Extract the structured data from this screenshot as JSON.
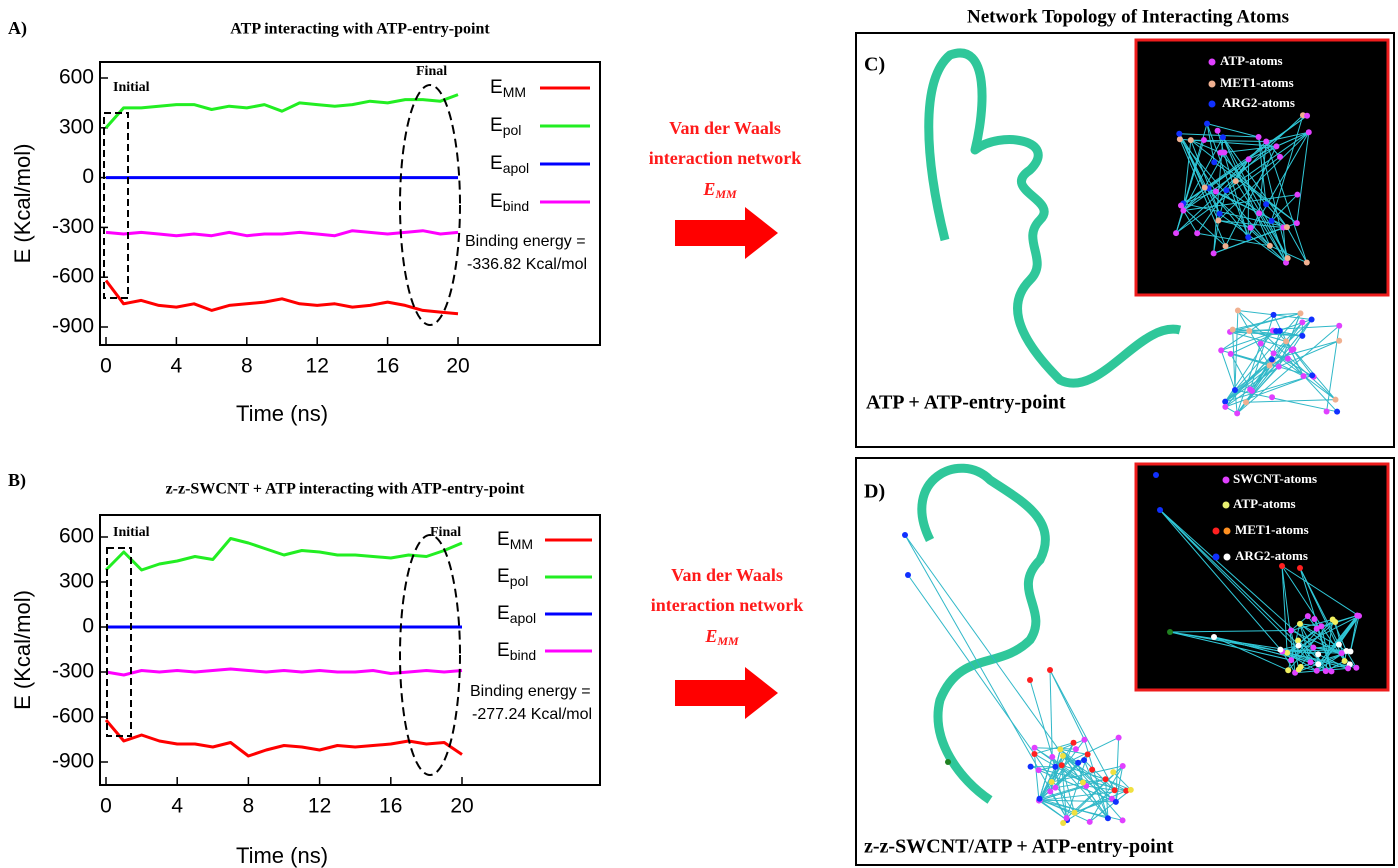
{
  "chart_data": [
    {
      "type": "line",
      "panel": "A)",
      "title": "ATP interacting with ATP-entry-point",
      "xlabel": "Time (ns)",
      "ylabel": "E (Kcal/mol)",
      "x": [
        0,
        1,
        2,
        3,
        4,
        5,
        6,
        7,
        8,
        9,
        10,
        11,
        12,
        13,
        14,
        15,
        16,
        17,
        18,
        19,
        20
      ],
      "xlim": [
        0,
        20
      ],
      "xticks": [
        0,
        4,
        8,
        12,
        16,
        20
      ],
      "ylim": [
        -900,
        600
      ],
      "yticks": [
        600,
        300,
        0,
        -300,
        -600,
        -900
      ],
      "series": [
        {
          "name": "E",
          "name_sub": "MM",
          "color": "#ff0000",
          "values": [
            -620,
            -760,
            -740,
            -770,
            -780,
            -760,
            -800,
            -770,
            -760,
            -750,
            -730,
            -760,
            -770,
            -760,
            -780,
            -770,
            -750,
            -770,
            -800,
            -810,
            -820
          ]
        },
        {
          "name": "E",
          "name_sub": "pol",
          "color": "#22ee22",
          "values": [
            300,
            420,
            420,
            430,
            440,
            440,
            410,
            430,
            420,
            440,
            400,
            450,
            440,
            430,
            440,
            460,
            450,
            470,
            470,
            460,
            500
          ]
        },
        {
          "name": "E",
          "name_sub": "apol",
          "color": "#0000ff",
          "values": [
            0,
            0,
            0,
            0,
            0,
            0,
            0,
            0,
            0,
            0,
            0,
            0,
            0,
            0,
            0,
            0,
            0,
            0,
            0,
            0,
            0
          ]
        },
        {
          "name": "E",
          "name_sub": "bind",
          "color": "#ff00ff",
          "values": [
            -330,
            -340,
            -330,
            -340,
            -350,
            -340,
            -350,
            -330,
            -350,
            -340,
            -340,
            -330,
            -340,
            -350,
            -320,
            -330,
            -340,
            -330,
            -320,
            -340,
            -330
          ]
        }
      ],
      "annotations": [
        "Initial",
        "Final",
        "Binding energy =",
        "-336.82 Kcal/mol"
      ]
    },
    {
      "type": "line",
      "panel": "B)",
      "title": "z-z-SWCNT + ATP interacting with ATP-entry-point",
      "xlabel": "Time (ns)",
      "ylabel": "E (Kcal/mol)",
      "x": [
        0,
        1,
        2,
        3,
        4,
        5,
        6,
        7,
        8,
        9,
        10,
        11,
        12,
        13,
        14,
        15,
        16,
        17,
        18,
        19,
        20
      ],
      "xlim": [
        0,
        20
      ],
      "xticks": [
        0,
        4,
        8,
        12,
        16,
        20
      ],
      "ylim": [
        -900,
        600
      ],
      "yticks": [
        600,
        300,
        0,
        -300,
        -600,
        -900
      ],
      "series": [
        {
          "name": "E",
          "name_sub": "MM",
          "color": "#ff0000",
          "values": [
            -620,
            -760,
            -720,
            -760,
            -780,
            -780,
            -800,
            -770,
            -860,
            -820,
            -790,
            -800,
            -820,
            -790,
            -800,
            -790,
            -780,
            -760,
            -780,
            -770,
            -850
          ]
        },
        {
          "name": "E",
          "name_sub": "pol",
          "color": "#22ee22",
          "values": [
            380,
            500,
            380,
            420,
            440,
            470,
            450,
            590,
            560,
            520,
            480,
            510,
            500,
            480,
            480,
            470,
            460,
            480,
            470,
            510,
            560
          ]
        },
        {
          "name": "E",
          "name_sub": "apol",
          "color": "#0000ff",
          "values": [
            0,
            0,
            0,
            0,
            0,
            0,
            0,
            0,
            0,
            0,
            0,
            0,
            0,
            0,
            0,
            0,
            0,
            0,
            0,
            0,
            0
          ]
        },
        {
          "name": "E",
          "name_sub": "bind",
          "color": "#ff00ff",
          "values": [
            -300,
            -320,
            -290,
            -300,
            -290,
            -300,
            -290,
            -280,
            -290,
            -300,
            -290,
            -300,
            -290,
            -300,
            -300,
            -290,
            -310,
            -300,
            -290,
            -300,
            -290
          ]
        }
      ],
      "annotations": [
        "Initial",
        "Final",
        "Binding energy =",
        "-277.24 Kcal/mol"
      ]
    }
  ],
  "arrows": [
    {
      "lines": [
        "Van der Waals",
        "interaction network"
      ],
      "symbol": "E",
      "symbol_sub": "MM"
    },
    {
      "lines": [
        "Van der Waals",
        "interaction network"
      ],
      "symbol": "E",
      "symbol_sub": "MM"
    }
  ],
  "network": {
    "title": "Network Topology of Interacting Atoms",
    "panels": [
      {
        "label": "C)",
        "caption": "ATP + ATP-entry-point",
        "legend": [
          "ATP-atoms",
          "MET1-atoms",
          "ARG2-atoms"
        ]
      },
      {
        "label": "D)",
        "caption": "z-z-SWCNT/ATP + ATP-entry-point",
        "legend": [
          "SWCNT-atoms",
          "ATP-atoms",
          "MET1-atoms",
          "ARG2-atoms"
        ]
      }
    ]
  }
}
